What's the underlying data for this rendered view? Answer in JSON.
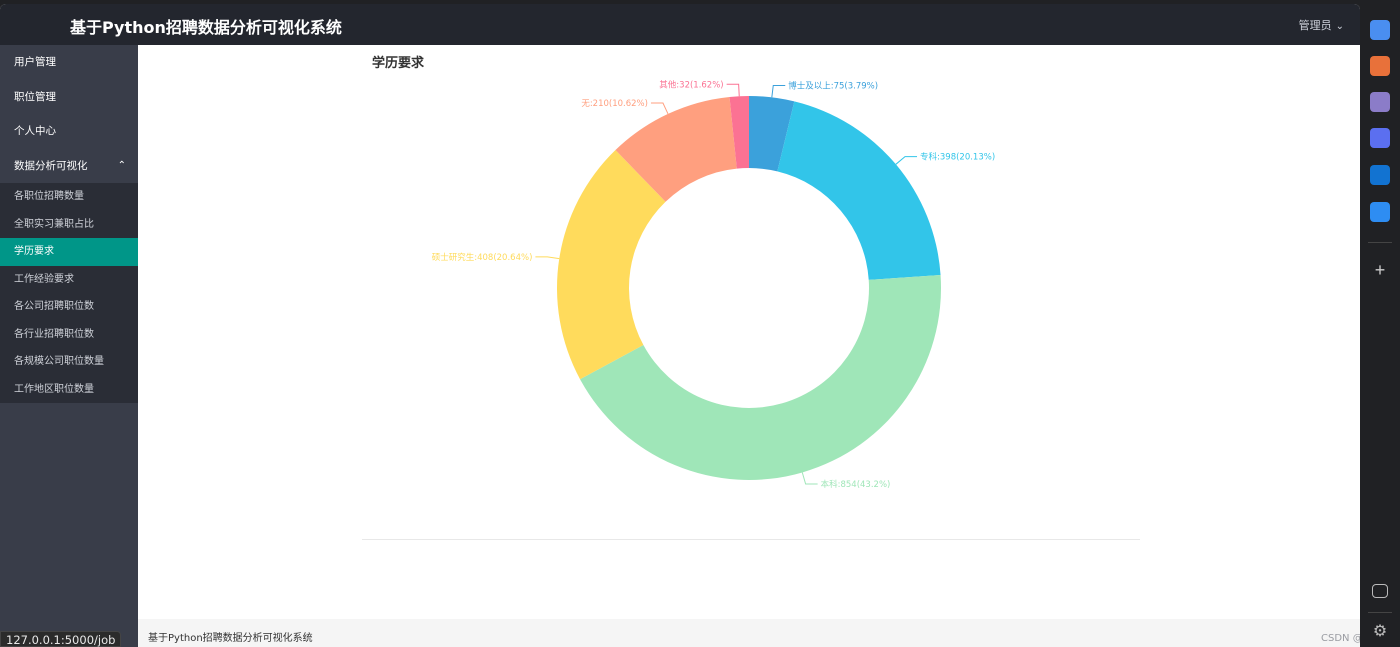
{
  "header": {
    "title": "基于Python招聘数据分析可视化系统",
    "user": "管理员"
  },
  "sidebar": {
    "items": [
      {
        "label": "用户管理"
      },
      {
        "label": "职位管理"
      },
      {
        "label": "个人中心"
      },
      {
        "label": "数据分析可视化"
      }
    ],
    "subitems": [
      {
        "label": "各职位招聘数量"
      },
      {
        "label": "全职实习兼职占比"
      },
      {
        "label": "学历要求"
      },
      {
        "label": "工作经验要求"
      },
      {
        "label": "各公司招聘职位数"
      },
      {
        "label": "各行业招聘职位数"
      },
      {
        "label": "各规模公司职位数量"
      },
      {
        "label": "工作地区职位数量"
      }
    ],
    "active_subitem": "学历要求"
  },
  "chart_data": {
    "type": "pie",
    "title": "学历要求",
    "slices": [
      {
        "name": "博士及以上",
        "value": 75,
        "percent": 3.79,
        "label": "博士及以上:75(3.79%)",
        "color": "#3ba1db"
      },
      {
        "name": "专科",
        "value": 398,
        "percent": 20.13,
        "label": "专科:398(20.13%)",
        "color": "#32c5e9"
      },
      {
        "name": "本科",
        "value": 854,
        "percent": 43.2,
        "label": "本科:854(43.2%)",
        "color": "#9fe6b8"
      },
      {
        "name": "硕士研究生",
        "value": 408,
        "percent": 20.64,
        "label": "硕士研究生:408(20.64%)",
        "color": "#ffdb5c"
      },
      {
        "name": "无",
        "value": 210,
        "percent": 10.62,
        "label": "无:210(10.62%)",
        "color": "#ff9f7f"
      },
      {
        "name": "其他",
        "value": 32,
        "percent": 1.62,
        "label": "其他:32(1.62%)",
        "color": "#fb7293"
      }
    ],
    "legend": "none"
  },
  "footer": {
    "text": "基于Python招聘数据分析可视化系统"
  },
  "watermark": "CSDN @汤姆",
  "status_url": "127.0.0.1:5000/job",
  "rightbar": {
    "icons": [
      {
        "name": "tag-icon",
        "color": "#4a8ef0"
      },
      {
        "name": "briefcase-icon",
        "color": "#e8713a"
      },
      {
        "name": "people-icon",
        "color": "#8b7cc8"
      },
      {
        "name": "copilot-icon",
        "color": "#5b6ff0"
      },
      {
        "name": "outlook-icon",
        "color": "#1273d1"
      },
      {
        "name": "send-icon",
        "color": "#2e8df2"
      }
    ]
  }
}
